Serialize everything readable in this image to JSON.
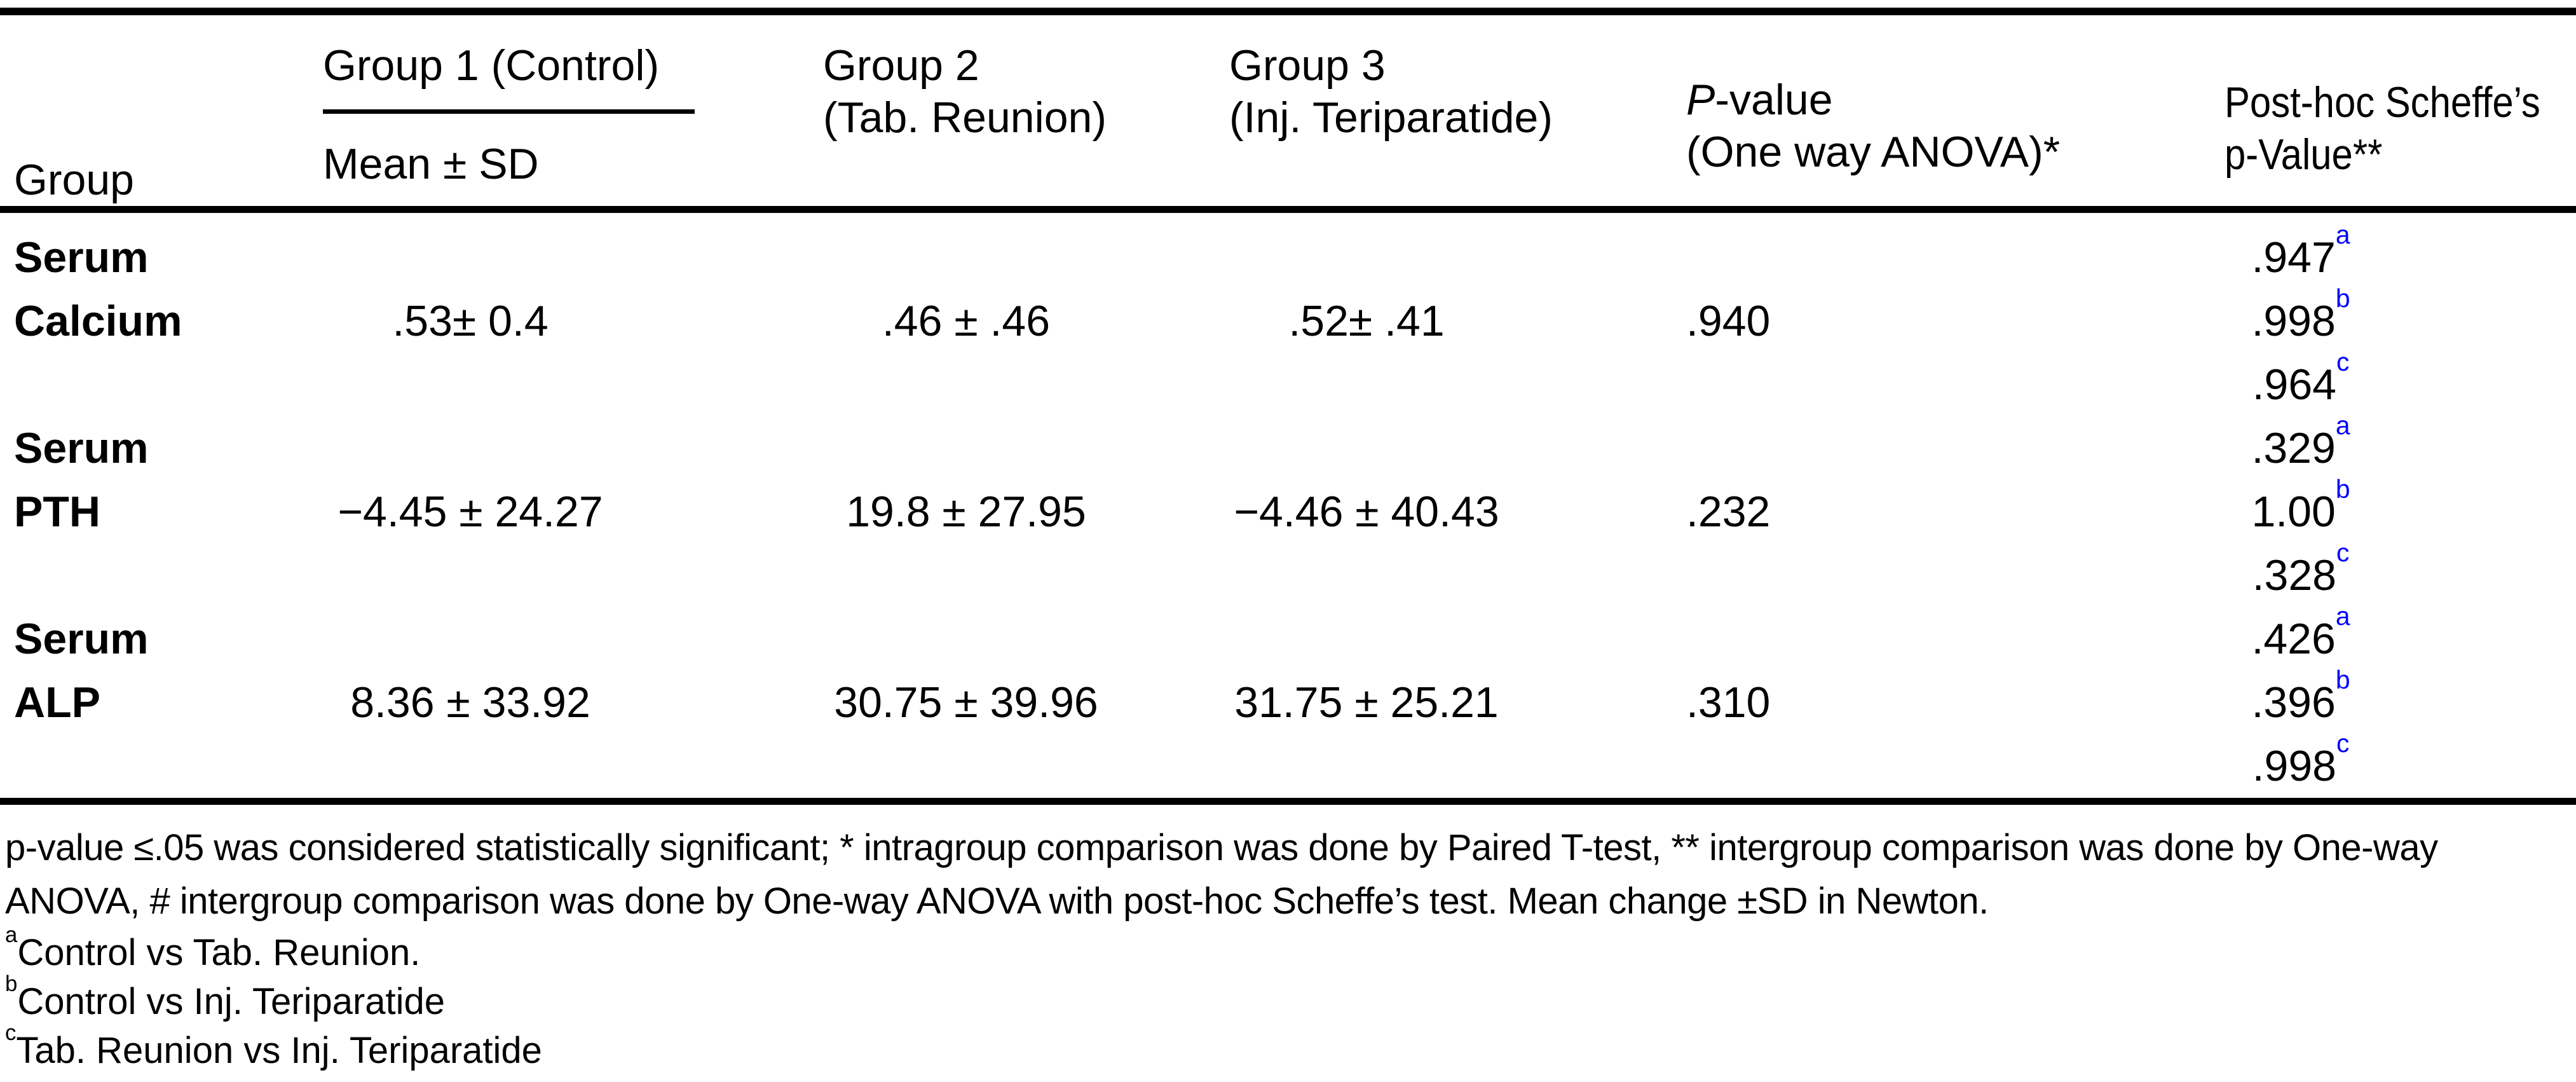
{
  "colors": {
    "text": "#000000",
    "background": "#FFFFFF",
    "superscript_accent": "#0000FF"
  },
  "table": {
    "header": {
      "group_col": "Group",
      "group1_title": "Group 1 (Control)",
      "group1_sub": "Mean ± SD",
      "group2_line1": "Group 2",
      "group2_line2": "(Tab. Reunion)",
      "group3_line1": "Group 3",
      "group3_line2": "(Inj. Teriparatide)",
      "pvalue_italic": "P",
      "pvalue_rest": "-value",
      "pvalue_line2": "(One way ANOVA)*",
      "posthoc_line1": "Post-hoc Scheffe’s",
      "posthoc_line2": "p-Value**"
    },
    "rows": [
      {
        "name_line1": "Serum",
        "name_line2": "Calcium",
        "group1": ".53± 0.4",
        "group2": ".46 ± .46",
        "group3": ".52± .41",
        "p_value": ".940",
        "posthoc": [
          {
            "value": ".947",
            "sup": "a"
          },
          {
            "value": ".998",
            "sup": "b"
          },
          {
            "value": ".964",
            "sup": "c"
          }
        ]
      },
      {
        "name_line1": "Serum",
        "name_line2": "PTH",
        "group1": "−4.45 ± 24.27",
        "group2": "19.8 ± 27.95",
        "group3": "−4.46 ± 40.43",
        "p_value": ".232",
        "posthoc": [
          {
            "value": ".329",
            "sup": "a"
          },
          {
            "value": "1.00",
            "sup": "b"
          },
          {
            "value": ".328",
            "sup": "c"
          }
        ]
      },
      {
        "name_line1": "Serum",
        "name_line2": "ALP",
        "group1": "8.36 ± 33.92",
        "group2": "30.75 ± 39.96",
        "group3": "31.75 ± 25.21",
        "p_value": ".310",
        "posthoc": [
          {
            "value": ".426",
            "sup": "a"
          },
          {
            "value": ".396",
            "sup": "b"
          },
          {
            "value": ".998",
            "sup": "c"
          }
        ]
      }
    ]
  },
  "footnotes": {
    "general": "p-value ≤.05 was considered statistically significant; * intragroup comparison was done by Paired T-test, ** intergroup comparison was done by One-way ANOVA, # intergroup comparison was done by One-way ANOVA with post-hoc Scheffe’s test. Mean change ±SD in Newton.",
    "items": [
      {
        "marker": "a",
        "text": "Control vs Tab. Reunion."
      },
      {
        "marker": "b",
        "text": "Control vs Inj. Teriparatide"
      },
      {
        "marker": "c",
        "text": "Tab. Reunion vs Inj. Teriparatide"
      }
    ]
  }
}
